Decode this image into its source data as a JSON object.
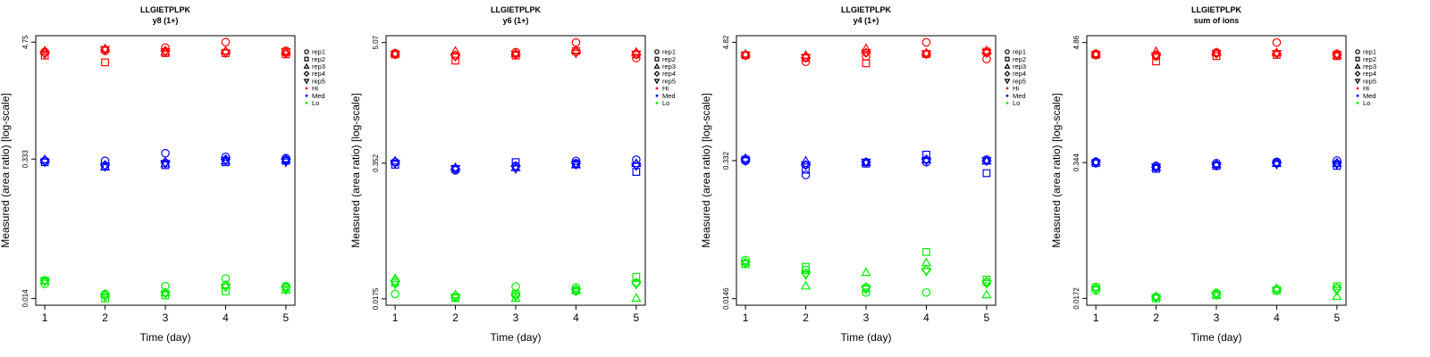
{
  "chart_data": [
    {
      "type": "scatter",
      "title": "LLGIETPLPK",
      "subtitle": "y8 (1+)",
      "xlabel": "Time (day)",
      "ylabel": "Measured (area ratio) [log-scale]",
      "x_ticks": [
        1,
        2,
        3,
        4,
        5
      ],
      "y_ticks": [
        "4.75",
        "0.333",
        "0.014"
      ],
      "yscale": "log",
      "ylim": [
        0.012,
        5.5
      ],
      "xlim": [
        0.85,
        5.15
      ],
      "legend_position": "right",
      "series": [
        {
          "concentration": "Hi",
          "color": "#ff0000",
          "reps": [
            {
              "marker": "circle",
              "values": [
                3.8,
                3.9,
                4.2,
                4.75,
                3.9
              ]
            },
            {
              "marker": "square",
              "values": [
                3.5,
                3.0,
                3.7,
                3.7,
                3.6
              ]
            },
            {
              "marker": "triangle-up",
              "values": [
                3.9,
                4.1,
                3.8,
                3.9,
                3.8
              ]
            },
            {
              "marker": "diamond",
              "values": [
                3.7,
                4.0,
                3.9,
                3.8,
                3.7
              ]
            },
            {
              "marker": "triangle-down",
              "values": [
                3.6,
                4.0,
                3.8,
                3.7,
                3.8
              ]
            }
          ]
        },
        {
          "concentration": "Med",
          "color": "#0000ff",
          "reps": [
            {
              "marker": "circle",
              "values": [
                0.32,
                0.32,
                0.38,
                0.35,
                0.34
              ]
            },
            {
              "marker": "square",
              "values": [
                0.31,
                0.28,
                0.29,
                0.31,
                0.32
              ]
            },
            {
              "marker": "triangle-up",
              "values": [
                0.33,
                0.28,
                0.3,
                0.32,
                0.33
              ]
            },
            {
              "marker": "diamond",
              "values": [
                0.32,
                0.29,
                0.31,
                0.33,
                0.33
              ]
            },
            {
              "marker": "triangle-down",
              "values": [
                0.31,
                0.28,
                0.3,
                0.32,
                0.31
              ]
            }
          ]
        },
        {
          "concentration": "Lo",
          "color": "#00ee00",
          "reps": [
            {
              "marker": "circle",
              "values": [
                0.0195,
                0.0155,
                0.0185,
                0.022,
                0.0185
              ]
            },
            {
              "marker": "square",
              "values": [
                0.021,
                0.014,
                0.015,
                0.0165,
                0.018
              ]
            },
            {
              "marker": "triangle-up",
              "values": [
                0.021,
                0.0155,
                0.016,
                0.019,
                0.017
              ]
            },
            {
              "marker": "diamond",
              "values": [
                0.021,
                0.015,
                0.016,
                0.019,
                0.018
              ]
            },
            {
              "marker": "triangle-down",
              "values": [
                0.0205,
                0.0145,
                0.0155,
                0.018,
                0.017
              ]
            }
          ]
        }
      ]
    },
    {
      "type": "scatter",
      "title": "LLGIETPLPK",
      "subtitle": "y6 (1+)",
      "xlabel": "Time (day)",
      "ylabel": "Measured (area ratio) [log-scale]",
      "x_ticks": [
        1,
        2,
        3,
        4,
        5
      ],
      "y_ticks": [
        "5.07",
        "0.352",
        "0.0175"
      ],
      "yscale": "log",
      "ylim": [
        0.0152,
        5.9
      ],
      "xlim": [
        0.85,
        5.15
      ],
      "legend_position": "right",
      "series": [
        {
          "concentration": "Hi",
          "color": "#ff0000",
          "reps": [
            {
              "marker": "circle",
              "values": [
                4.0,
                3.8,
                4.1,
                5.07,
                3.6
              ]
            },
            {
              "marker": "square",
              "values": [
                3.9,
                3.4,
                3.8,
                4.2,
                3.9
              ]
            },
            {
              "marker": "triangle-up",
              "values": [
                4.0,
                4.2,
                4.0,
                4.3,
                4.1
              ]
            },
            {
              "marker": "diamond",
              "values": [
                3.9,
                3.8,
                3.9,
                4.1,
                3.9
              ]
            },
            {
              "marker": "triangle-down",
              "values": [
                3.9,
                3.7,
                3.9,
                4.0,
                3.9
              ]
            }
          ]
        },
        {
          "concentration": "Med",
          "color": "#0000ff",
          "reps": [
            {
              "marker": "circle",
              "values": [
                0.36,
                0.3,
                0.33,
                0.37,
                0.38
              ]
            },
            {
              "marker": "square",
              "values": [
                0.34,
                0.31,
                0.36,
                0.35,
                0.29
              ]
            },
            {
              "marker": "triangle-up",
              "values": [
                0.37,
                0.32,
                0.32,
                0.34,
                0.35
              ]
            },
            {
              "marker": "diamond",
              "values": [
                0.36,
                0.31,
                0.33,
                0.35,
                0.34
              ]
            },
            {
              "marker": "triangle-down",
              "values": [
                0.35,
                0.31,
                0.31,
                0.34,
                0.33
              ]
            }
          ]
        },
        {
          "concentration": "Lo",
          "color": "#00ee00",
          "reps": [
            {
              "marker": "circle",
              "values": [
                0.0195,
                0.018,
                0.023,
                0.0225,
                0.025
              ]
            },
            {
              "marker": "square",
              "values": [
                0.025,
                0.0178,
                0.0195,
                0.021,
                0.0285
              ]
            },
            {
              "marker": "triangle-up",
              "values": [
                0.0275,
                0.0192,
                0.0178,
                0.0215,
                0.0178
              ]
            },
            {
              "marker": "diamond",
              "values": [
                0.026,
                0.0188,
                0.019,
                0.0215,
                0.025
              ]
            },
            {
              "marker": "triangle-down",
              "values": [
                0.024,
                0.0182,
                0.0185,
                0.0205,
                0.024
              ]
            }
          ]
        }
      ]
    },
    {
      "type": "scatter",
      "title": "LLGIETPLPK",
      "subtitle": "y4 (1+)",
      "xlabel": "Time (day)",
      "ylabel": "Measured (area ratio) [log-scale]",
      "x_ticks": [
        1,
        2,
        3,
        4,
        5
      ],
      "y_ticks": [
        "4.82",
        "0.332",
        "0.0146"
      ],
      "yscale": "log",
      "ylim": [
        0.0126,
        5.6
      ],
      "xlim": [
        0.85,
        5.15
      ],
      "legend_position": "right",
      "series": [
        {
          "concentration": "Hi",
          "color": "#ff0000",
          "reps": [
            {
              "marker": "circle",
              "values": [
                3.6,
                3.1,
                3.5,
                4.82,
                3.3
              ]
            },
            {
              "marker": "square",
              "values": [
                3.6,
                3.4,
                3.0,
                3.7,
                3.9
              ]
            },
            {
              "marker": "triangle-up",
              "values": [
                3.7,
                3.6,
                4.2,
                3.8,
                4.0
              ]
            },
            {
              "marker": "diamond",
              "values": [
                3.6,
                3.4,
                3.8,
                3.7,
                3.8
              ]
            },
            {
              "marker": "triangle-down",
              "values": [
                3.6,
                3.4,
                3.8,
                3.7,
                3.8
              ]
            }
          ]
        },
        {
          "concentration": "Med",
          "color": "#0000ff",
          "reps": [
            {
              "marker": "circle",
              "values": [
                0.33,
                0.24,
                0.32,
                0.32,
                0.34
              ]
            },
            {
              "marker": "square",
              "values": [
                0.34,
                0.27,
                0.31,
                0.38,
                0.25
              ]
            },
            {
              "marker": "triangle-up",
              "values": [
                0.35,
                0.33,
                0.32,
                0.34,
                0.33
              ]
            },
            {
              "marker": "diamond",
              "values": [
                0.34,
                0.3,
                0.32,
                0.34,
                0.33
              ]
            },
            {
              "marker": "triangle-down",
              "values": [
                0.33,
                0.3,
                0.32,
                0.33,
                0.33
              ]
            }
          ]
        },
        {
          "concentration": "Lo",
          "color": "#00ee00",
          "reps": [
            {
              "marker": "circle",
              "values": [
                0.035,
                0.028,
                0.0168,
                0.0168,
                0.021
              ]
            },
            {
              "marker": "square",
              "values": [
                0.032,
                0.03,
                0.0185,
                0.042,
                0.0225
              ]
            },
            {
              "marker": "triangle-up",
              "values": [
                0.0335,
                0.0195,
                0.0265,
                0.033,
                0.016
              ]
            },
            {
              "marker": "diamond",
              "values": [
                0.033,
                0.026,
                0.019,
                0.028,
                0.0215
              ]
            },
            {
              "marker": "triangle-down",
              "values": [
                0.0325,
                0.025,
                0.018,
                0.027,
                0.0205
              ]
            }
          ]
        }
      ]
    },
    {
      "type": "scatter",
      "title": "LLGIETPLPK",
      "subtitle": "sum of ions",
      "xlabel": "Time (day)",
      "ylabel": "Measured (area ratio) [log-scale]",
      "x_ticks": [
        1,
        2,
        3,
        4,
        5
      ],
      "y_ticks": [
        "4.86",
        "0.344",
        "0.0172"
      ],
      "yscale": "log",
      "ylim": [
        0.0148,
        5.65
      ],
      "xlim": [
        0.85,
        5.15
      ],
      "legend_position": "right",
      "series": [
        {
          "concentration": "Hi",
          "color": "#ff0000",
          "reps": [
            {
              "marker": "circle",
              "values": [
                3.8,
                3.6,
                3.9,
                4.86,
                3.8
              ]
            },
            {
              "marker": "square",
              "values": [
                3.7,
                3.2,
                3.6,
                3.7,
                3.6
              ]
            },
            {
              "marker": "triangle-up",
              "values": [
                3.8,
                4.0,
                3.9,
                3.9,
                3.7
              ]
            },
            {
              "marker": "diamond",
              "values": [
                3.7,
                3.7,
                3.8,
                3.8,
                3.7
              ]
            },
            {
              "marker": "triangle-down",
              "values": [
                3.7,
                3.6,
                3.8,
                3.8,
                3.7
              ]
            }
          ]
        },
        {
          "concentration": "Med",
          "color": "#0000ff",
          "reps": [
            {
              "marker": "circle",
              "values": [
                0.35,
                0.32,
                0.34,
                0.35,
                0.36
              ]
            },
            {
              "marker": "square",
              "values": [
                0.34,
                0.3,
                0.32,
                0.34,
                0.32
              ]
            },
            {
              "marker": "triangle-up",
              "values": [
                0.35,
                0.31,
                0.33,
                0.34,
                0.34
              ]
            },
            {
              "marker": "diamond",
              "values": [
                0.35,
                0.31,
                0.33,
                0.34,
                0.34
              ]
            },
            {
              "marker": "triangle-down",
              "values": [
                0.34,
                0.31,
                0.32,
                0.33,
                0.33
              ]
            }
          ]
        },
        {
          "concentration": "Lo",
          "color": "#00ee00",
          "reps": [
            {
              "marker": "circle",
              "values": [
                0.0205,
                0.0178,
                0.0195,
                0.021,
                0.0215
              ]
            },
            {
              "marker": "square",
              "values": [
                0.022,
                0.0172,
                0.0185,
                0.0205,
                0.0225
              ]
            },
            {
              "marker": "triangle-up",
              "values": [
                0.022,
                0.018,
                0.0185,
                0.0215,
                0.018
              ]
            },
            {
              "marker": "diamond",
              "values": [
                0.0215,
                0.0178,
                0.019,
                0.021,
                0.0215
              ]
            },
            {
              "marker": "triangle-down",
              "values": [
                0.021,
                0.0175,
                0.0185,
                0.0205,
                0.0205
              ]
            }
          ]
        }
      ]
    }
  ],
  "legend": [
    {
      "label": "rep1",
      "marker": "circle",
      "color": "#000000"
    },
    {
      "label": "rep2",
      "marker": "square",
      "color": "#000000"
    },
    {
      "label": "rep3",
      "marker": "triangle-up",
      "color": "#000000"
    },
    {
      "label": "rep4",
      "marker": "diamond",
      "color": "#000000"
    },
    {
      "label": "rep5",
      "marker": "triangle-down",
      "color": "#000000"
    },
    {
      "label": "Hi",
      "marker": "dot",
      "color": "#ff0000"
    },
    {
      "label": "Med",
      "marker": "dot",
      "color": "#0000ff"
    },
    {
      "label": "Lo",
      "marker": "dot",
      "color": "#00ee00"
    }
  ]
}
